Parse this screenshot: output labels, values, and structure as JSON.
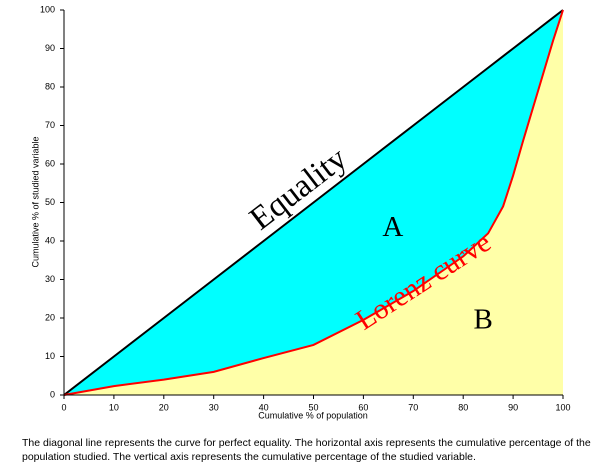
{
  "chart_data": {
    "type": "line",
    "x": [
      0,
      10,
      20,
      30,
      40,
      50,
      60,
      70,
      80,
      85,
      88,
      90,
      92,
      95,
      98,
      100
    ],
    "series": [
      {
        "name": "Equality",
        "color": "#000000",
        "fill": "#00ffff",
        "values": [
          0,
          10,
          20,
          30,
          40,
          50,
          60,
          70,
          80,
          85,
          88,
          90,
          92,
          95,
          98,
          100
        ]
      },
      {
        "name": "Lorenz curve",
        "color": "#ff0000",
        "fill": "#ffffa8",
        "values": [
          0,
          2.3,
          4,
          6,
          9.6,
          13,
          19.5,
          27,
          36,
          42,
          49,
          57,
          66,
          79,
          92,
          100
        ]
      }
    ],
    "region_labels": [
      "A",
      "B"
    ],
    "xlabel": "Cumulative % of population",
    "ylabel": "Cumulative % of studied variable",
    "xlim": [
      0,
      100
    ],
    "ylim": [
      0,
      100
    ],
    "xticks": [
      0,
      10,
      20,
      30,
      40,
      50,
      60,
      70,
      80,
      90,
      100
    ],
    "yticks": [
      0,
      10,
      20,
      30,
      40,
      50,
      60,
      70,
      80,
      90,
      100
    ],
    "caption": "The diagonal line represents the curve for perfect equality. The horizontal axis represents the cumulative percentage of the population studied. The vertical axis represents the cumulative percentage of the studied variable."
  }
}
